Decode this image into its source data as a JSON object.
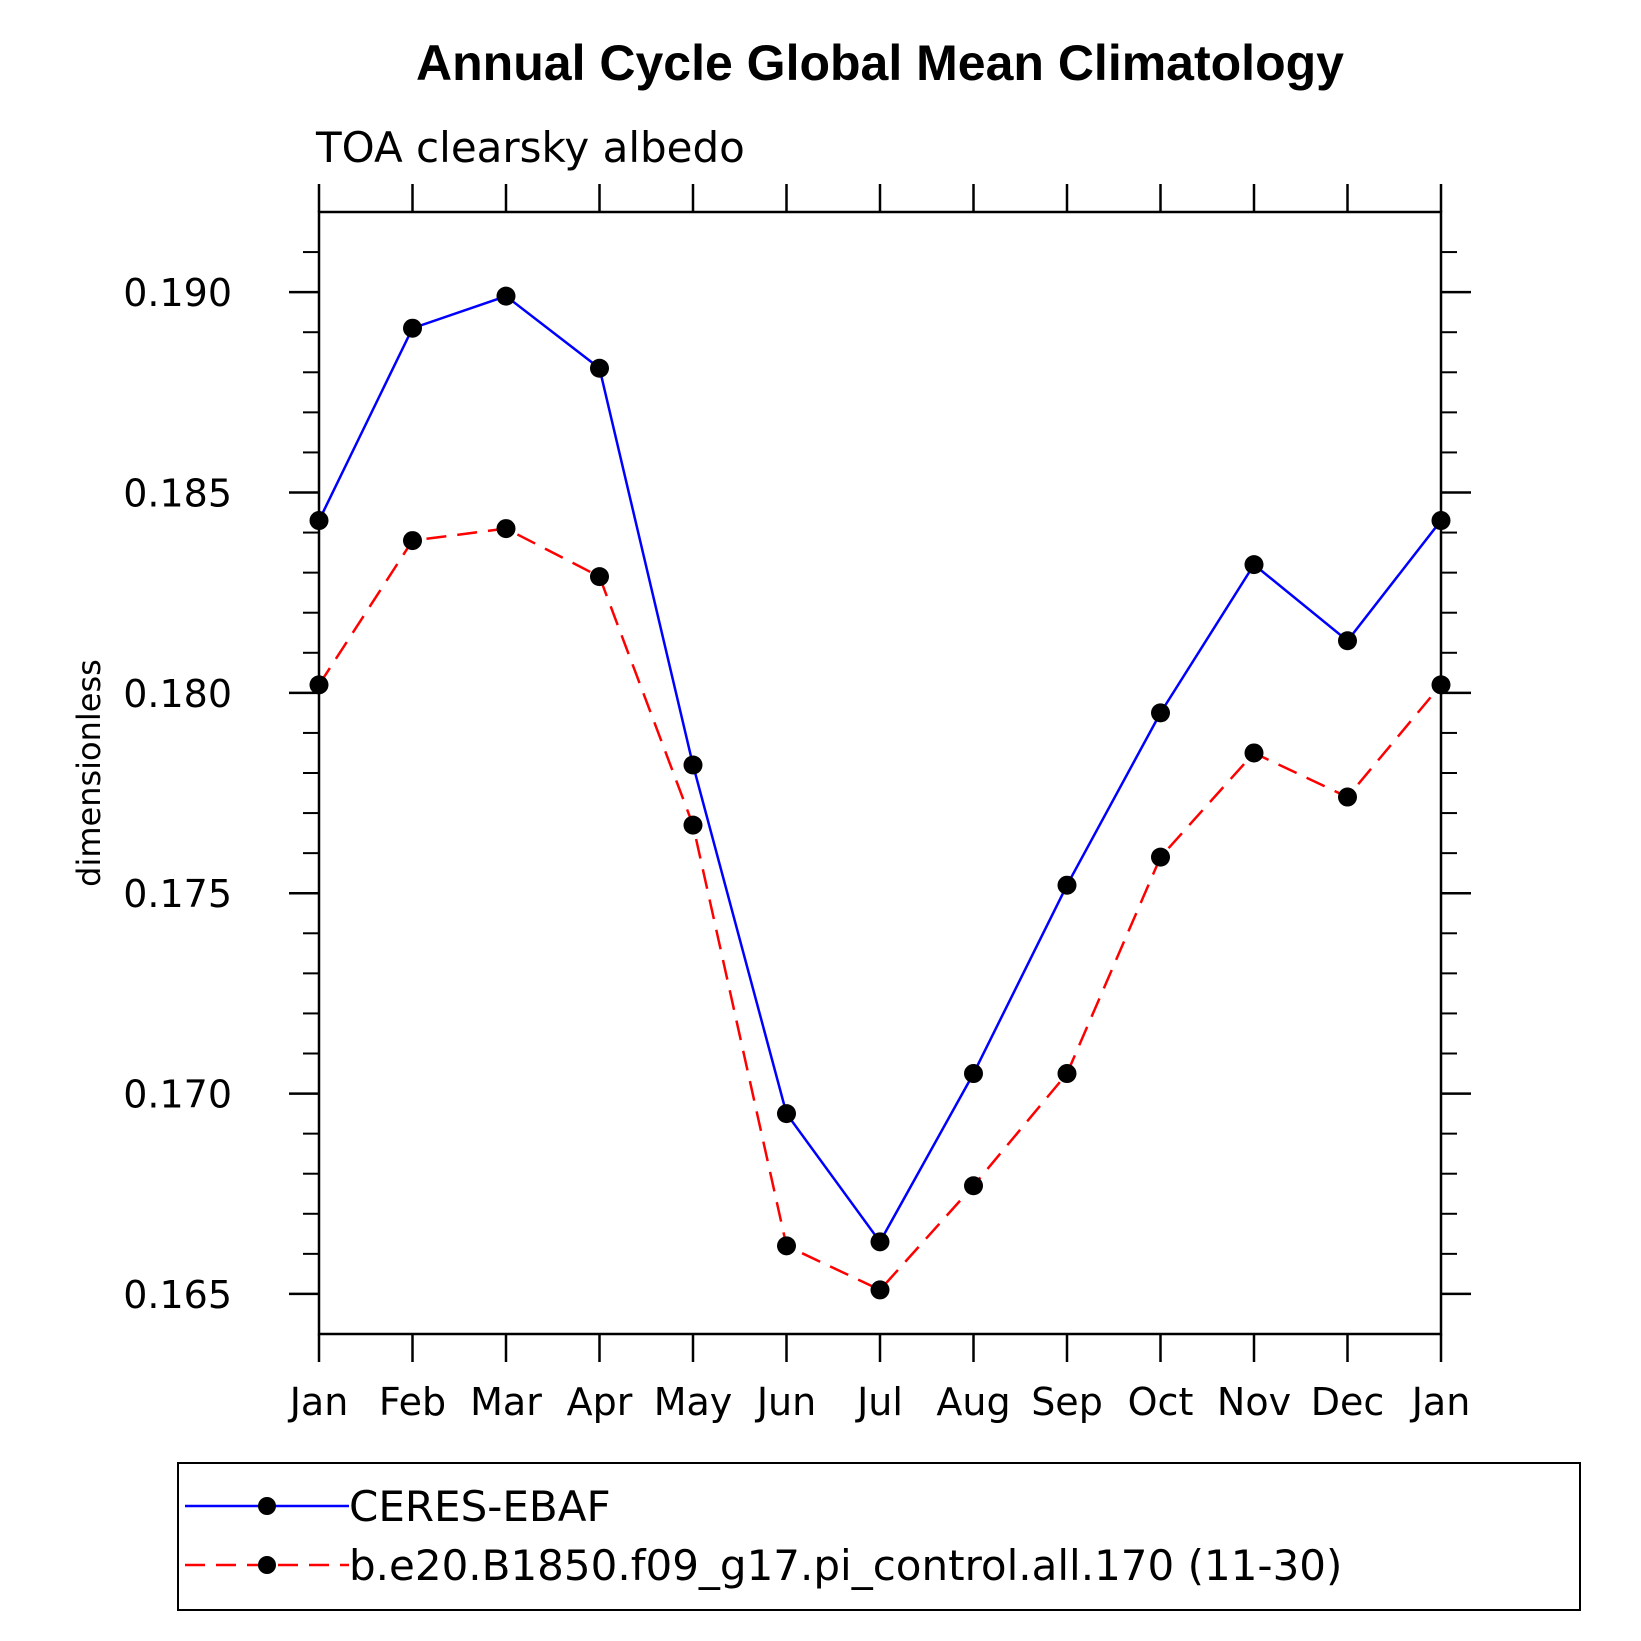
{
  "chart_data": {
    "type": "line",
    "title": "Annual Cycle Global Mean Climatology",
    "subtitle": "TOA clearsky albedo",
    "xlabel": "",
    "ylabel": "dimensionless",
    "categories": [
      "Jan",
      "Feb",
      "Mar",
      "Apr",
      "May",
      "Jun",
      "Jul",
      "Aug",
      "Sep",
      "Oct",
      "Nov",
      "Dec",
      "Jan"
    ],
    "ylim": [
      0.164,
      0.192
    ],
    "yticks": [
      0.165,
      0.17,
      0.175,
      0.18,
      0.185,
      0.19
    ],
    "ytick_labels": [
      "0.165",
      "0.170",
      "0.175",
      "0.180",
      "0.185",
      "0.190"
    ],
    "yminor_step": 0.001,
    "grid": false,
    "legend_position": "bottom",
    "series": [
      {
        "name": "CERES-EBAF",
        "color": "#0000ff",
        "style": "solid",
        "marker": "circle",
        "values": [
          0.1843,
          0.1891,
          0.1899,
          0.1881,
          0.1782,
          0.1695,
          0.1663,
          0.1705,
          0.1752,
          0.1795,
          0.1832,
          0.1813,
          0.1843
        ]
      },
      {
        "name": "b.e20.B1850.f09_g17.pi_control.all.170 (11-30)",
        "color": "#ff0000",
        "style": "dashed",
        "marker": "circle",
        "values": [
          0.1802,
          0.1838,
          0.1841,
          0.1829,
          0.1767,
          0.1662,
          0.1651,
          0.1677,
          0.1705,
          0.1759,
          0.1785,
          0.1774,
          0.1802
        ]
      }
    ]
  }
}
